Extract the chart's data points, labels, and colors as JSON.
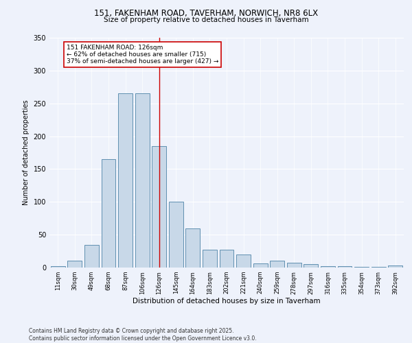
{
  "title_line1": "151, FAKENHAM ROAD, TAVERHAM, NORWICH, NR8 6LX",
  "title_line2": "Size of property relative to detached houses in Taverham",
  "xlabel": "Distribution of detached houses by size in Taverham",
  "ylabel": "Number of detached properties",
  "footer": "Contains HM Land Registry data © Crown copyright and database right 2025.\nContains public sector information licensed under the Open Government Licence v3.0.",
  "annotation_line1": "151 FAKENHAM ROAD: 126sqm",
  "annotation_line2": "← 62% of detached houses are smaller (715)",
  "annotation_line3": "37% of semi-detached houses are larger (427) →",
  "bar_color": "#c8d8e8",
  "bar_edge_color": "#6090b0",
  "annotation_line_color": "#cc0000",
  "annotation_box_color": "#cc0000",
  "background_color": "#eef2fb",
  "categories": [
    "11sqm",
    "30sqm",
    "49sqm",
    "68sqm",
    "87sqm",
    "106sqm",
    "126sqm",
    "145sqm",
    "164sqm",
    "183sqm",
    "202sqm",
    "221sqm",
    "240sqm",
    "259sqm",
    "278sqm",
    "297sqm",
    "316sqm",
    "335sqm",
    "354sqm",
    "373sqm",
    "392sqm"
  ],
  "values": [
    2,
    10,
    35,
    165,
    265,
    265,
    185,
    100,
    60,
    27,
    27,
    20,
    6,
    10,
    7,
    5,
    2,
    2,
    1,
    1,
    3
  ],
  "ylim": [
    0,
    350
  ],
  "yticks": [
    0,
    50,
    100,
    150,
    200,
    250,
    300,
    350
  ],
  "property_bar_index": 6,
  "figsize": [
    6.0,
    5.0
  ],
  "dpi": 100
}
